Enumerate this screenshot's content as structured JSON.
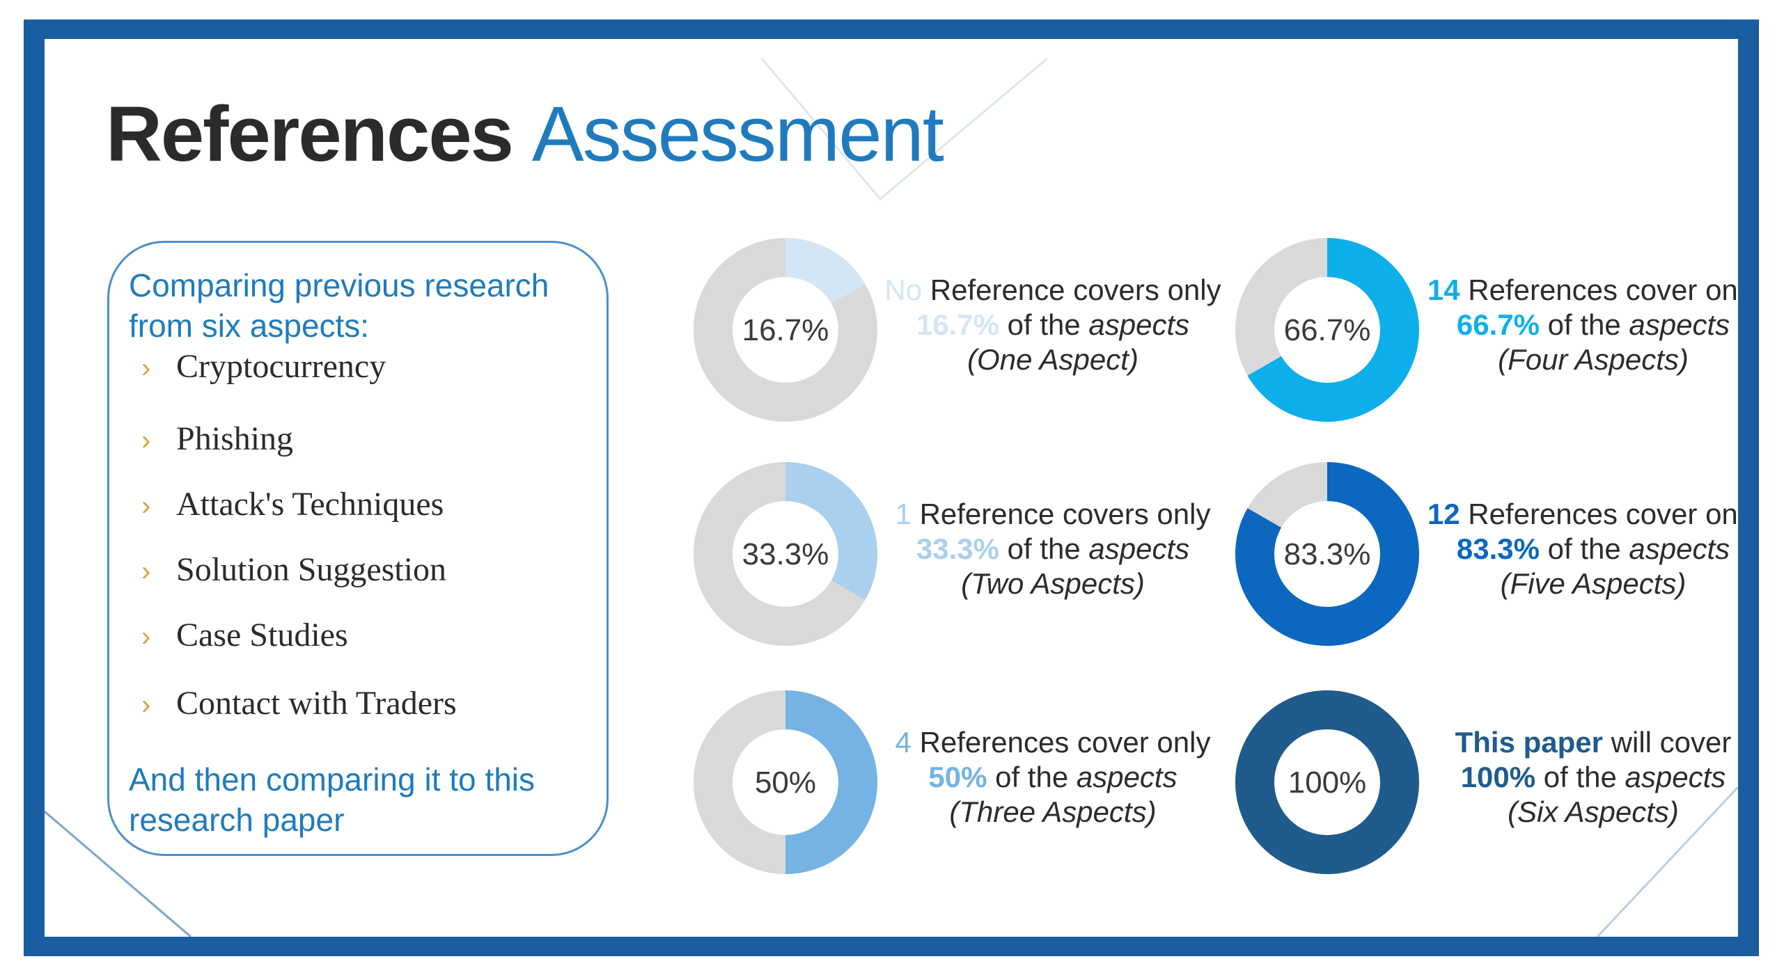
{
  "title": {
    "word1": "References",
    "word2": "Assessment"
  },
  "panel": {
    "intro": "Comparing previous research from six aspects:",
    "aspects": [
      "Cryptocurrency",
      "Phishing",
      "Attack's Techniques",
      "Solution Suggestion",
      "Case Studies",
      "Contact with Traders"
    ],
    "outro": "And then comparing it to this research paper"
  },
  "colors": {
    "frame": "#1a5ea1",
    "title_dark": "#2b2b2b",
    "title_blue": "#1f7bbd",
    "track": "#d9d9d9"
  },
  "chart_data": {
    "type": "pie",
    "charts": [
      {
        "label": "16.7%",
        "value": 16.7,
        "color": "#d3e6f5",
        "count": "No",
        "text_a": " Reference covers only",
        "pct": "16.7%",
        "text_b": " of the ",
        "aspects_word": "aspects",
        "note": "(One Aspect)"
      },
      {
        "label": "33.3%",
        "value": 33.3,
        "color": "#a9d0ee",
        "count": "1",
        "text_a": " Reference covers only",
        "pct": "33.3%",
        "text_b": " of the ",
        "aspects_word": "aspects",
        "note": "(Two Aspects)"
      },
      {
        "label": "50%",
        "value": 50,
        "color": "#74b3e3",
        "count": "4",
        "text_a": " References cover only",
        "pct": "50%",
        "text_b": " of the ",
        "aspects_word": "aspects",
        "note": "(Three Aspects)"
      },
      {
        "label": "66.7%",
        "value": 66.7,
        "color": "#0dafea",
        "count": "14",
        "text_a": " References cover only",
        "pct": "66.7%",
        "text_b": " of the ",
        "aspects_word": "aspects",
        "note": "(Four Aspects)"
      },
      {
        "label": "83.3%",
        "value": 83.3,
        "color": "#0b67bf",
        "count": "12",
        "text_a": " References cover only",
        "pct": "83.3%",
        "text_b": " of the ",
        "aspects_word": "aspects",
        "note": "(Five Aspects)"
      },
      {
        "label": "100%",
        "value": 100,
        "color": "#1f5b8c",
        "count": "This paper",
        "text_a": " will cover",
        "pct": "100%",
        "text_b": " of the ",
        "aspects_word": "aspects",
        "note": "(Six Aspects)"
      }
    ]
  }
}
